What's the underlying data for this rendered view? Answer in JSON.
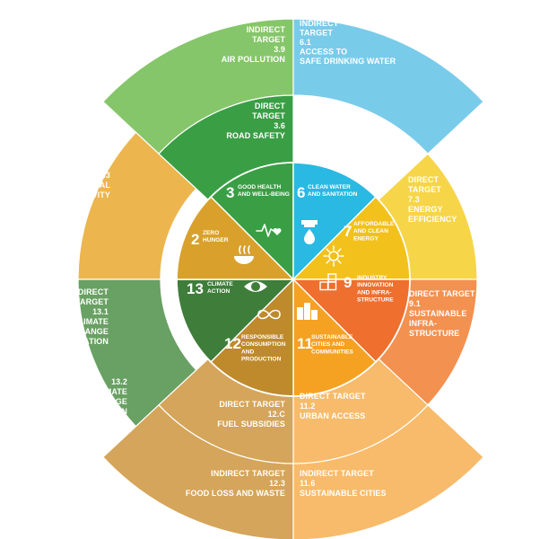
{
  "colors": {
    "sdg3": "#3a9e45",
    "sdg3_light": "#86c66a",
    "sdg6": "#29b9e3",
    "sdg6_light": "#79cbea",
    "sdg7": "#f3c11b",
    "sdg7_light": "#f6d548",
    "sdg9": "#ef6f2e",
    "sdg9_light": "#f39150",
    "sdg11": "#f5a122",
    "sdg11_light": "#f7bb6b",
    "sdg12": "#be8a2c",
    "sdg12_light": "#d4a55a",
    "sdg13": "#3e7d3a",
    "sdg13_light": "#69a063",
    "sdg2": "#d9a12b",
    "sdg2_light": "#ecb54e"
  },
  "center": {
    "goals": [
      {
        "key": "g3",
        "number": "3",
        "lines": [
          "GOOD HEALTH",
          "AND WELL-BEING"
        ],
        "icon": "heartbeat-icon"
      },
      {
        "key": "g6",
        "number": "6",
        "lines": [
          "CLEAN WATER",
          "AND SANITATION"
        ],
        "icon": "water-drop-icon"
      },
      {
        "key": "g7",
        "number": "7",
        "lines": [
          "AFFORDABLE",
          "AND CLEAN",
          "ENERGY"
        ],
        "icon": "sun-power-icon"
      },
      {
        "key": "g9",
        "number": "9",
        "lines": [
          "INDUSTRY",
          "INNOVATION",
          "AND INFRA-",
          "STRUCTURE"
        ],
        "icon": "cubes-icon"
      },
      {
        "key": "g11",
        "number": "11",
        "lines": [
          "SUSTAINABLE",
          "CITIES AND",
          "COMMUNITIES"
        ],
        "icon": "city-buildings-icon"
      },
      {
        "key": "g12",
        "number": "12",
        "lines": [
          "RESPONSIBLE",
          "CONSUMPTION",
          "AND",
          "PRODUCTION"
        ],
        "icon": "infinity-loop-icon"
      },
      {
        "key": "g13",
        "number": "13",
        "lines": [
          "CLIMATE",
          "ACTION"
        ],
        "icon": "eye-globe-icon"
      },
      {
        "key": "g2",
        "number": "2",
        "lines": [
          "ZERO",
          "HUNGER"
        ],
        "icon": "food-bowl-icon"
      }
    ]
  },
  "direct_targets": [
    {
      "key": "d36",
      "lines": [
        "DIRECT",
        "TARGET",
        "3.6",
        "ROAD SAFETY"
      ]
    },
    {
      "key": "d73",
      "lines": [
        "DIRECT",
        "TARGET",
        "7.3",
        "ENERGY",
        "EFFICIENCY"
      ]
    },
    {
      "key": "d91",
      "lines": [
        "DIRECT TARGET",
        "9.1",
        "SUSTAINABLE",
        "INFRA-",
        "STRUCTURE"
      ]
    },
    {
      "key": "d112",
      "lines": [
        "DIRECT TARGET",
        "11.2",
        "URBAN ACCESS"
      ]
    },
    {
      "key": "d12c",
      "lines": [
        "DIRECT TARGET",
        "12.C",
        "FUEL SUBSIDIES"
      ]
    }
  ],
  "indirect_targets": [
    {
      "key": "i39",
      "lines": [
        "INDIRECT",
        "TARGET",
        "3.9",
        "AIR POLLUTION"
      ]
    },
    {
      "key": "i61",
      "lines": [
        "INDIRECT",
        "TARGET",
        "6.1",
        "ACCESS TO",
        "SAFE DRINKING WATER"
      ]
    },
    {
      "key": "i23",
      "lines": [
        "INDIRECT",
        "TARGET",
        "2.3",
        "AGRICULTURAL",
        "PRODUCTIVITY"
      ]
    },
    {
      "key": "i131",
      "lines": [
        "INDIRECT",
        "TARGET",
        "13.1",
        "CLIMATE",
        "CHANGE",
        "ADAPTATION"
      ]
    },
    {
      "key": "i132",
      "lines": [
        "13.2",
        "CLIMATE",
        "CHANGE",
        "MITIGATION"
      ]
    },
    {
      "key": "i123",
      "lines": [
        "INDIRECT TARGET",
        "12.3",
        "FOOD LOSS AND WASTE"
      ]
    },
    {
      "key": "i116",
      "lines": [
        "INDIRECT TARGET",
        "11.6",
        "SUSTAINABLE CITIES"
      ]
    }
  ]
}
